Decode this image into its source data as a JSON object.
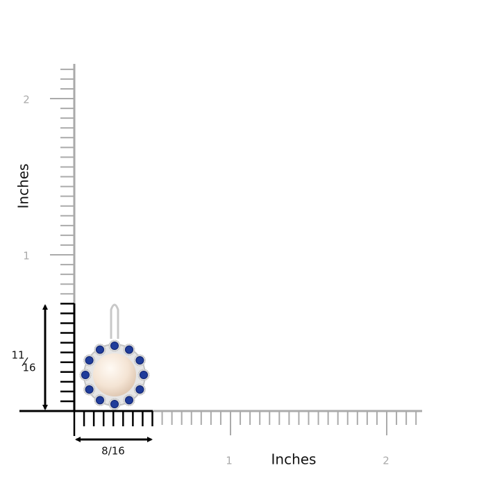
{
  "y_axis": {
    "label": "Inches",
    "ticks": [
      "2",
      "1"
    ]
  },
  "x_axis": {
    "label": "Inches",
    "ticks": [
      "1",
      "2"
    ]
  },
  "height": {
    "numerator": "11",
    "denominator": "16"
  },
  "width": "8/16"
}
